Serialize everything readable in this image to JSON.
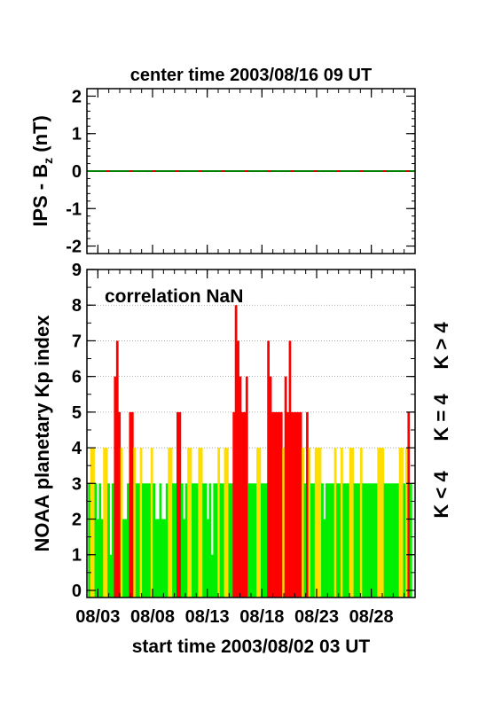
{
  "chart_data": [
    {
      "type": "line",
      "title": "center time 2003/08/16 09 UT",
      "ylabel_main": "IPS - B",
      "ylabel_sub": "z",
      "ylabel_unit": " (nT)",
      "ylim": [
        -2.2,
        2.2
      ],
      "yticks": [
        "2",
        "1",
        "0",
        "-1",
        "-2"
      ],
      "ytick_values": [
        2,
        1,
        0,
        -1,
        -2
      ],
      "series": [
        {
          "color": "#008000",
          "x": [
            0,
            30
          ],
          "y": [
            0,
            0
          ]
        }
      ],
      "grid": false
    },
    {
      "type": "bar",
      "title": "correlation NaN",
      "ylabel": "NOAA planetary Kp index",
      "xlabel": "start time 2003/08/02 03 UT",
      "ylim": [
        -0.2,
        9
      ],
      "xlim": [
        0,
        30
      ],
      "yticks": [
        "9",
        "8",
        "7",
        "6",
        "5",
        "4",
        "3",
        "2",
        "1",
        "0"
      ],
      "ytick_values": [
        9,
        8,
        7,
        6,
        5,
        4,
        3,
        2,
        1,
        0
      ],
      "xticks": [
        "08/03",
        "08/08",
        "08/13",
        "08/18",
        "08/23",
        "08/28"
      ],
      "xtick_values": [
        1,
        6,
        11,
        16,
        21,
        26
      ],
      "kp_values": [
        3,
        4,
        4,
        3,
        2,
        3,
        2,
        4,
        4,
        3,
        1,
        3,
        6,
        7,
        5,
        4,
        2,
        2,
        3,
        5,
        5,
        4,
        3,
        3,
        4,
        3,
        3,
        3,
        3,
        4,
        3,
        2,
        2,
        3,
        2,
        2,
        3,
        4,
        4,
        3,
        3,
        5,
        5,
        3,
        2,
        3,
        4,
        4,
        3,
        3,
        3,
        4,
        4,
        3,
        3,
        2,
        3,
        1,
        3,
        3,
        4,
        3,
        3,
        4,
        4,
        3,
        3,
        5,
        8,
        7,
        6,
        5,
        5,
        6,
        3,
        3,
        3,
        3,
        4,
        4,
        3,
        3,
        3,
        7,
        6,
        5,
        5,
        5,
        5,
        5,
        4,
        6,
        5,
        7,
        5,
        5,
        5,
        5,
        5,
        4,
        3,
        5,
        4,
        3,
        3,
        4,
        4,
        4,
        3,
        2,
        3,
        3,
        3,
        3,
        4,
        3,
        3,
        4,
        3,
        3,
        3,
        4,
        4,
        3,
        3,
        3,
        4,
        3,
        3,
        3,
        3,
        3,
        3,
        3,
        4,
        4,
        4,
        3,
        3,
        3,
        3,
        3,
        3,
        3,
        4,
        4,
        3,
        4,
        5,
        3
      ],
      "legend": [
        {
          "label": "K > 4",
          "color": "#ff0000"
        },
        {
          "label": "K = 4",
          "color": "#ffdd00"
        },
        {
          "label": "K < 4",
          "color": "#00ee00"
        }
      ],
      "gridlines": [
        4,
        5,
        6,
        7,
        8
      ],
      "grid": true
    }
  ]
}
